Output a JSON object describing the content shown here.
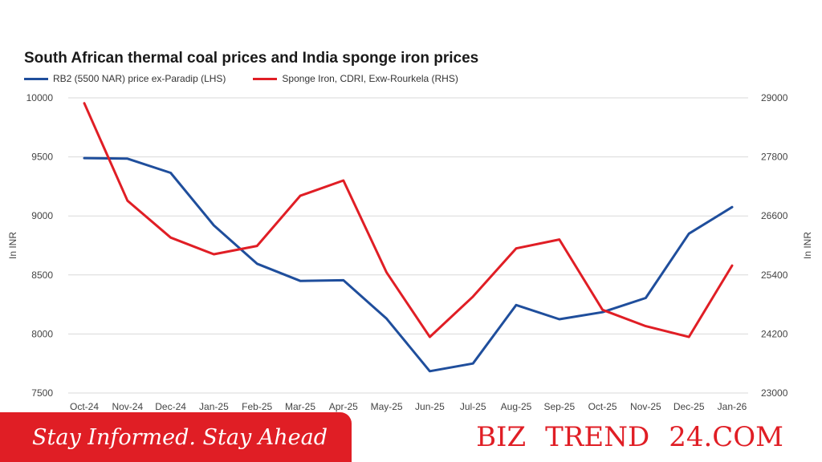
{
  "chart_data": {
    "type": "line",
    "title": "South African thermal coal prices and India sponge iron prices",
    "categories": [
      "Oct-24",
      "Nov-24",
      "Dec-24",
      "Jan-25",
      "Feb-25",
      "Mar-25",
      "Apr-25",
      "May-25",
      "Jun-25",
      "Jul-25",
      "Aug-25",
      "Sep-25",
      "Oct-25",
      "Nov-25",
      "Dec-25",
      "Jan-26"
    ],
    "ylabel_left": "In INR",
    "ylabel_right": "In INR",
    "ylim_left": [
      7500,
      10000
    ],
    "ylim_right": [
      23000,
      29000
    ],
    "yticks_left": [
      "10000",
      "9500",
      "9000",
      "8500",
      "8000",
      "7500"
    ],
    "yticks_right": [
      "29000",
      "27800",
      "26600",
      "25400",
      "24200",
      "23000"
    ],
    "grid": "horizontal",
    "legend_position": "top-left",
    "series": [
      {
        "name": "RB2 (5500 NAR) price ex-Paradip (LHS)",
        "axis": "left",
        "color": "#1f4e9c",
        "values": [
          9490,
          9485,
          9365,
          8920,
          8595,
          8450,
          8455,
          8130,
          7685,
          7750,
          8245,
          8125,
          8185,
          8305,
          8850,
          9075
        ]
      },
      {
        "name": "Sponge Iron, CDRI, Exw-Rourkela (RHS)",
        "axis": "right",
        "color": "#e01e25",
        "values": [
          28890,
          26910,
          26160,
          25820,
          25990,
          27010,
          27320,
          25450,
          24140,
          24960,
          25940,
          26120,
          24690,
          24360,
          24140,
          25590
        ]
      }
    ]
  },
  "banner": {
    "tagline": "Stay Informed. Stay Ahead",
    "brand_prefix": "BIZ",
    "brand_mid": "TREND",
    "brand_suffix": "24.COM"
  }
}
